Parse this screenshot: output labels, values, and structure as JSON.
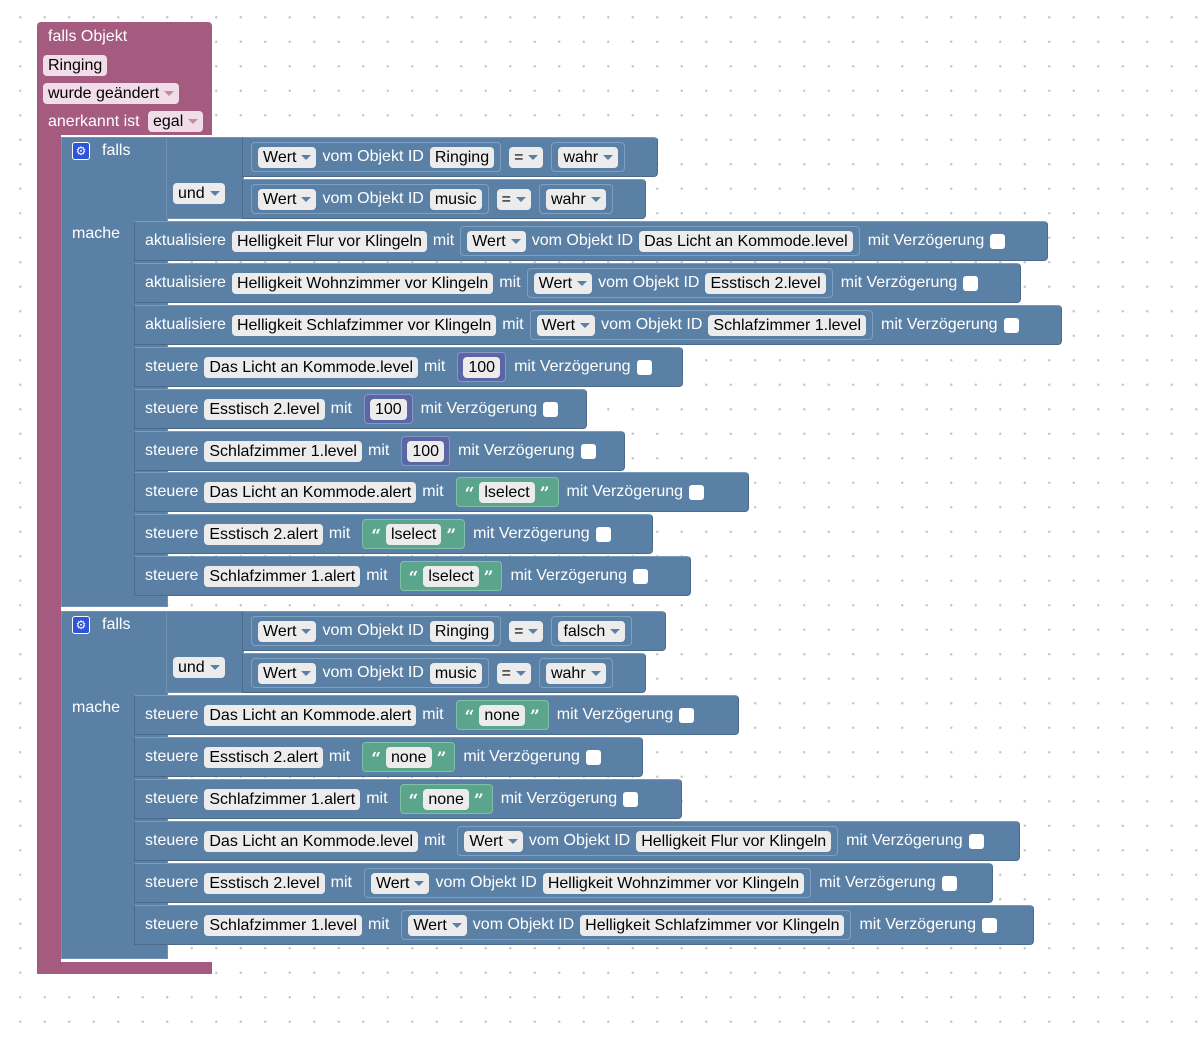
{
  "trigger": {
    "title": "falls Objekt",
    "object": "Ringing",
    "event": "wurde geändert",
    "ack_label": "anerkannt ist",
    "ack_value": "egal"
  },
  "kw": {
    "falls": "falls",
    "mache": "mache",
    "und": "und",
    "wert": "Wert",
    "vom_objekt_id": "vom Objekt ID",
    "eq": "=",
    "mit": "mit",
    "mit_verzoegerung": "mit Verzögerung",
    "aktualisiere": "aktualisiere",
    "steuere": "steuere"
  },
  "block1": {
    "cond1": {
      "object": "Ringing",
      "value": "wahr"
    },
    "cond2": {
      "object": "music",
      "value": "wahr"
    },
    "updates": [
      {
        "target": "Helligkeit Flur vor Klingeln",
        "source": "Das Licht an Kommode.level"
      },
      {
        "target": "Helligkeit Wohnzimmer vor Klingeln",
        "source": "Esstisch 2.level"
      },
      {
        "target": "Helligkeit Schlafzimmer vor Klingeln",
        "source": "Schlafzimmer 1.level"
      }
    ],
    "controls": [
      {
        "target": "Das Licht an Kommode.level",
        "value": "100"
      },
      {
        "target": "Esstisch 2.level",
        "value": "100"
      },
      {
        "target": "Schlafzimmer 1.level",
        "value": "100"
      },
      {
        "target": "Das Licht an Kommode.alert",
        "value": "lselect"
      },
      {
        "target": "Esstisch 2.alert",
        "value": "lselect"
      },
      {
        "target": "Schlafzimmer 1.alert",
        "value": "lselect"
      }
    ]
  },
  "block2": {
    "cond1": {
      "object": "Ringing",
      "value": "falsch"
    },
    "cond2": {
      "object": "music",
      "value": "wahr"
    },
    "controls": [
      {
        "target": "Das Licht an Kommode.alert",
        "value": "none"
      },
      {
        "target": "Esstisch 2.alert",
        "value": "none"
      },
      {
        "target": "Schlafzimmer 1.alert",
        "value": "none"
      },
      {
        "target": "Das Licht an Kommode.level",
        "source": "Helligkeit Flur vor Klingeln"
      },
      {
        "target": "Esstisch 2.level",
        "source": "Helligkeit Wohnzimmer vor Klingeln"
      },
      {
        "target": "Schlafzimmer 1.level",
        "source": "Helligkeit Schlafzimmer vor Klingeln"
      }
    ]
  },
  "colors": {
    "trigger": "#a55b80",
    "logic": "#5b80a5",
    "number": "#5b67a5",
    "text": "#5ba58c"
  }
}
